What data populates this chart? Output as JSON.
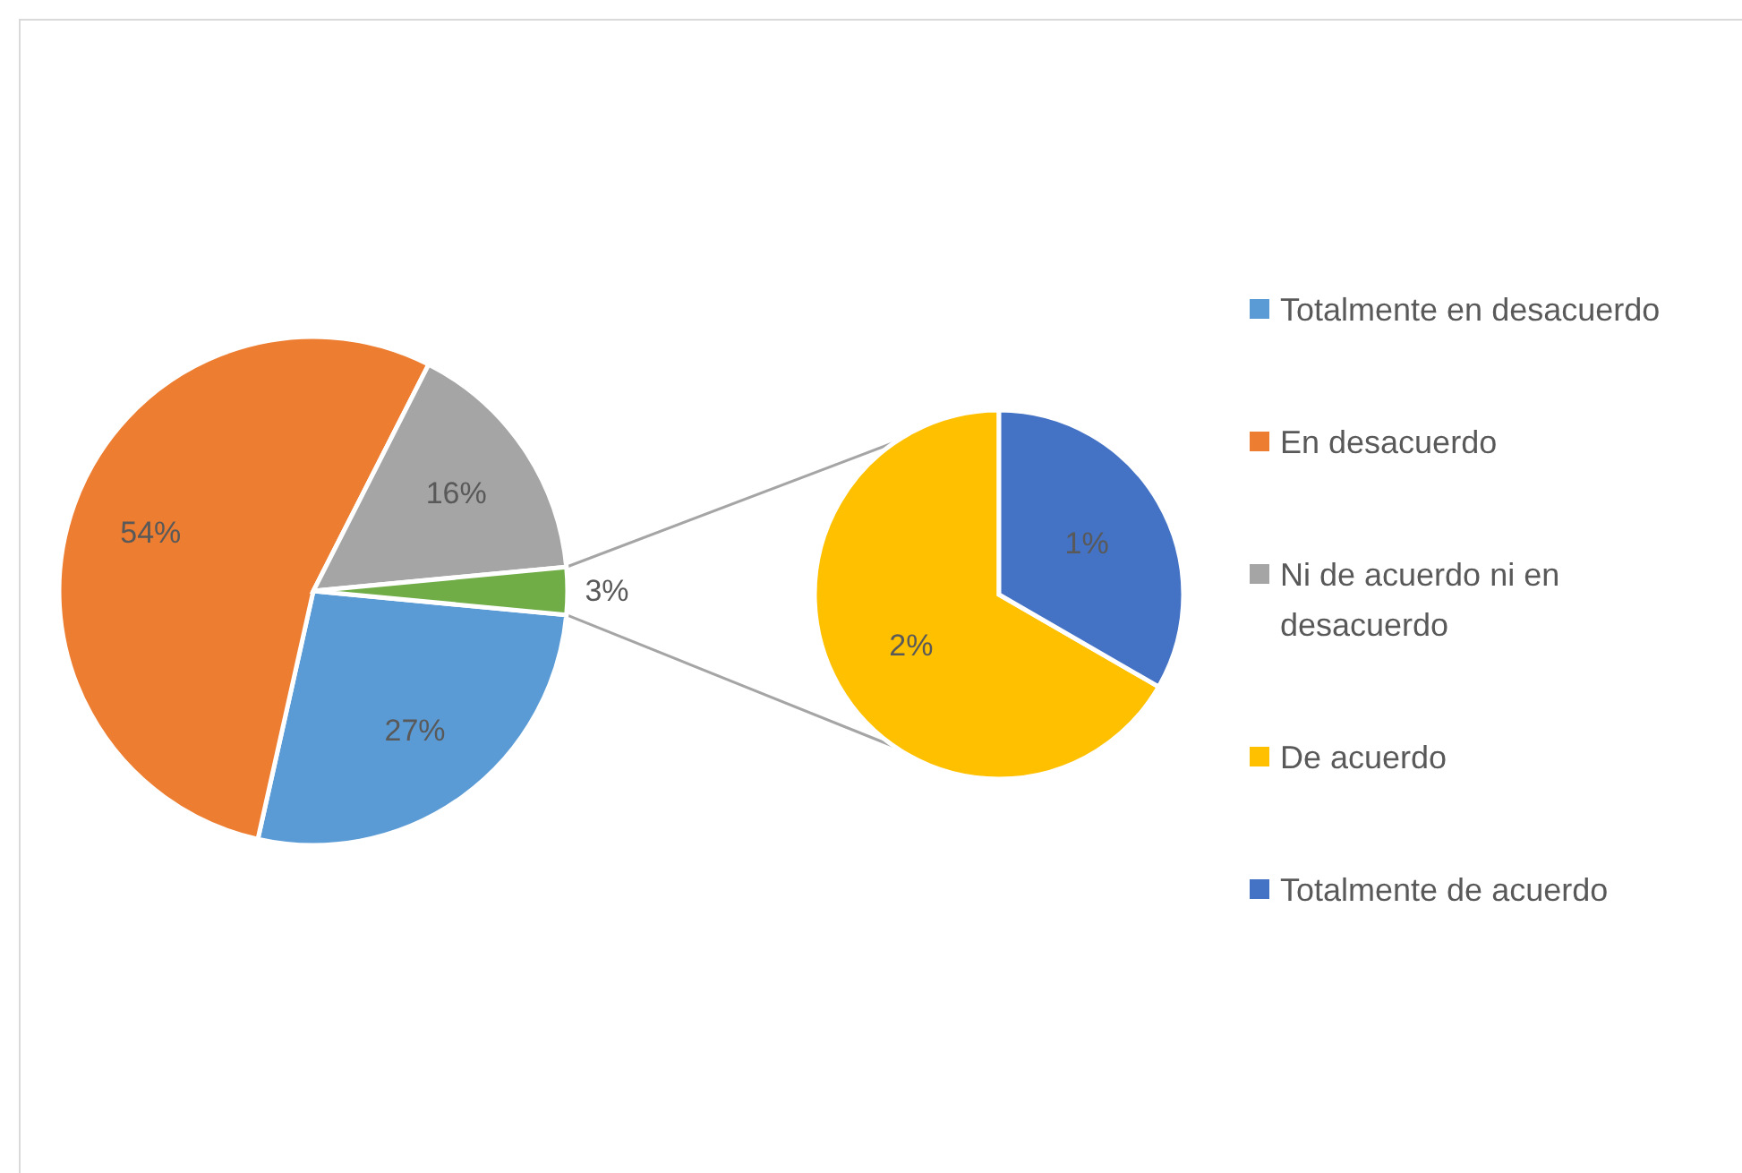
{
  "chart_data": [
    {
      "type": "pie",
      "categories": [
        "Totalmente en desacuerdo",
        "En desacuerdo",
        "Ni de acuerdo ni en desacuerdo",
        null
      ],
      "values": [
        27,
        54,
        16,
        3
      ],
      "value_labels": [
        "27%",
        "54%",
        "16%",
        "3%"
      ],
      "colors": [
        "#5b9bd5",
        "#ed7d31",
        "#a5a5a5",
        "#70ad47"
      ],
      "legend": "right"
    },
    {
      "type": "pie",
      "categories": [
        "De acuerdo",
        "Totalmente de acuerdo"
      ],
      "values": [
        2,
        1
      ],
      "value_labels": [
        "2%",
        "1%"
      ],
      "colors": [
        "#ffc000",
        "#4472c4"
      ],
      "legend": "right"
    }
  ]
}
